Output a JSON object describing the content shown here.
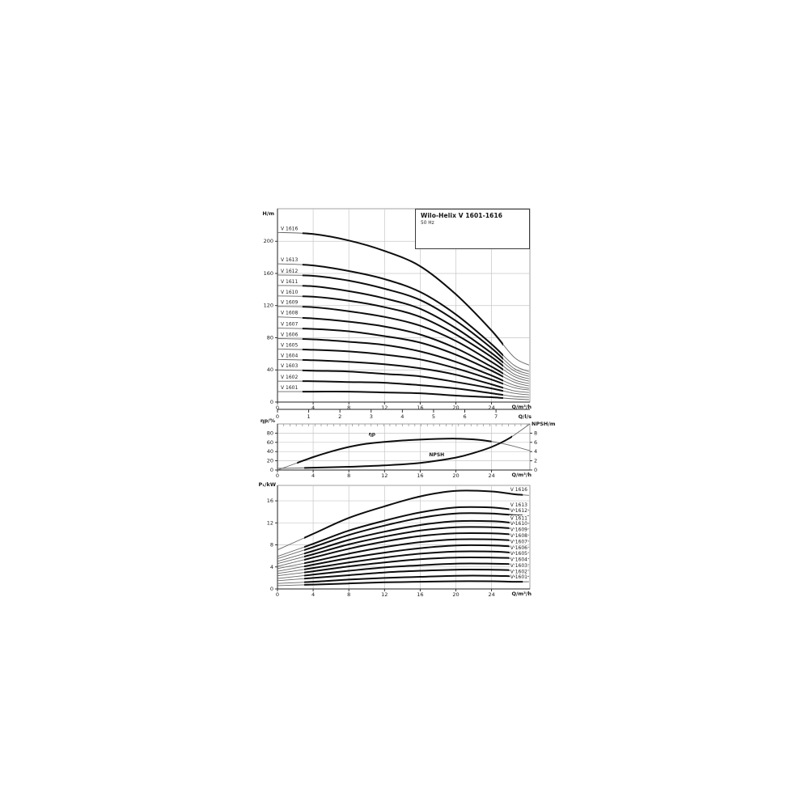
{
  "title_box": {
    "title": "Wilo-Helix V 1601-1616",
    "subtitle": "50 Hz"
  },
  "colors": {
    "background": "#ffffff",
    "curve": "#0d0d0d",
    "curve_thin": "#666666",
    "grid": "#c6c6c6",
    "frame": "#8a8a8a",
    "axis": "#222222",
    "text": "#1a1a1a"
  },
  "chart_data": [
    {
      "id": "head-flow",
      "type": "line",
      "ylabel": "H/m",
      "xlabel": "Q/m³/h",
      "x2label": "Q/l/s",
      "xlim": [
        0,
        28.3
      ],
      "ylim": [
        0,
        240.5
      ],
      "xticks": [
        0,
        4,
        8,
        12,
        16,
        20,
        24
      ],
      "yticks": [
        0,
        40,
        80,
        120,
        160,
        200
      ],
      "x2ticks": [
        0,
        1,
        2,
        3,
        4,
        5,
        6,
        7
      ],
      "x2_unit_m3h": 3.5,
      "grid": true,
      "label_side": "start",
      "x": [
        0,
        4,
        8,
        12,
        16,
        20,
        24,
        26.5,
        28.2
      ],
      "series": [
        {
          "name": "V 1616",
          "values": [
            211,
            209,
            201,
            188,
            169,
            134,
            89,
            56,
            46
          ]
        },
        {
          "name": "V 1613",
          "values": [
            172,
            170,
            163,
            153,
            137,
            109,
            72,
            46,
            38
          ]
        },
        {
          "name": "V 1612",
          "values": [
            158,
            157,
            151,
            141,
            127,
            101,
            67,
            42,
            35
          ]
        },
        {
          "name": "V 1611",
          "values": [
            145,
            144,
            138,
            129,
            116,
            92,
            61,
            39,
            32
          ]
        },
        {
          "name": "V 1610",
          "values": [
            132,
            131,
            126,
            118,
            106,
            84,
            56,
            35,
            29
          ]
        },
        {
          "name": "V 1609",
          "values": [
            119,
            118,
            113,
            106,
            95,
            76,
            50,
            32,
            26
          ]
        },
        {
          "name": "V 1608",
          "values": [
            106,
            104,
            100,
            94,
            84,
            67,
            44,
            28,
            23
          ]
        },
        {
          "name": "V 1607",
          "values": [
            92,
            91,
            88,
            82,
            74,
            59,
            39,
            25,
            20
          ]
        },
        {
          "name": "V 1606",
          "values": [
            79,
            78,
            75,
            71,
            63,
            50,
            33,
            21,
            17
          ]
        },
        {
          "name": "V 1605",
          "values": [
            66,
            65,
            63,
            59,
            53,
            42,
            28,
            18,
            15
          ]
        },
        {
          "name": "V 1604",
          "values": [
            53,
            52,
            50,
            47,
            42,
            34,
            22,
            14,
            12
          ]
        },
        {
          "name": "V 1603",
          "values": [
            40,
            39,
            38,
            35,
            32,
            25,
            17,
            11,
            9
          ]
        },
        {
          "name": "V 1602",
          "values": [
            26,
            26,
            25,
            24,
            21,
            17,
            11,
            7,
            6
          ]
        },
        {
          "name": "V 1601",
          "values": [
            13,
            13,
            13,
            12,
            11,
            8,
            6,
            4,
            3
          ]
        }
      ]
    },
    {
      "id": "efficiency-npsh",
      "type": "line",
      "ylabel": "ηp/%",
      "y2label": "NPSH/m",
      "xlabel": "Q/m³/h",
      "xlim": [
        0,
        28.3
      ],
      "ylim": [
        0,
        100
      ],
      "y2lim": [
        0,
        10
      ],
      "xticks": [
        0,
        4,
        8,
        12,
        16,
        20,
        24
      ],
      "yticks": [
        0,
        20,
        40,
        60,
        80
      ],
      "y2ticks": [
        0,
        2,
        4,
        6,
        8
      ],
      "grid": true,
      "series": [
        {
          "name": "ηp",
          "axis": "left",
          "x": [
            0,
            2,
            4,
            6,
            8,
            10,
            12,
            14,
            16,
            18,
            20,
            22,
            24,
            26,
            28.3
          ],
          "values": [
            0,
            14,
            28,
            40,
            50,
            57,
            61,
            64,
            66,
            67.5,
            68,
            66.5,
            62,
            54,
            42
          ]
        },
        {
          "name": "NPSH",
          "axis": "right",
          "x": [
            0,
            4,
            8,
            12,
            16,
            20,
            22,
            24,
            26,
            28.3
          ],
          "values": [
            0.35,
            0.5,
            0.7,
            1.0,
            1.55,
            2.7,
            3.7,
            5.0,
            6.9,
            10
          ]
        }
      ],
      "annotations": [
        {
          "text": "ηp",
          "x": 10.2,
          "y": 75
        },
        {
          "text": "NPSH",
          "x": 17,
          "y": 30
        }
      ]
    },
    {
      "id": "power-flow",
      "type": "line",
      "ylabel": "P₁/kW",
      "xlabel": "Q/m³/h",
      "xlim": [
        0,
        28.3
      ],
      "ylim": [
        0,
        18.8
      ],
      "xticks": [
        0,
        4,
        8,
        12,
        16,
        20,
        24
      ],
      "yticks": [
        0,
        4,
        8,
        12,
        16
      ],
      "grid": true,
      "label_side": "end",
      "x": [
        0,
        4,
        8,
        12,
        16,
        20,
        24,
        26.5,
        28.2
      ],
      "series": [
        {
          "name": "V 1616",
          "values": [
            7.1,
            10.0,
            12.9,
            15.0,
            16.8,
            17.8,
            17.7,
            17.2,
            17.0
          ]
        },
        {
          "name": "V 1613",
          "values": [
            5.9,
            8.2,
            10.6,
            12.4,
            13.9,
            14.8,
            14.8,
            14.4,
            14.3
          ]
        },
        {
          "name": "V 1612",
          "values": [
            5.5,
            7.6,
            9.8,
            11.5,
            12.9,
            13.7,
            13.7,
            13.4,
            13.3
          ]
        },
        {
          "name": "V 1611",
          "values": [
            5.0,
            6.9,
            8.9,
            10.4,
            11.6,
            12.3,
            12.3,
            12.0,
            11.9
          ]
        },
        {
          "name": "V 1610",
          "values": [
            4.6,
            6.3,
            8.1,
            9.5,
            10.6,
            11.2,
            11.2,
            11.0,
            10.9
          ]
        },
        {
          "name": "V 1609",
          "values": [
            4.1,
            5.7,
            7.3,
            8.6,
            9.6,
            10.1,
            10.1,
            9.9,
            9.8
          ]
        },
        {
          "name": "V 1608",
          "values": [
            3.7,
            5.0,
            6.4,
            7.6,
            8.5,
            9.0,
            9.0,
            8.8,
            8.7
          ]
        },
        {
          "name": "V 1607",
          "values": [
            3.2,
            4.4,
            5.6,
            6.6,
            7.4,
            7.9,
            7.9,
            7.7,
            7.6
          ]
        },
        {
          "name": "V 1606",
          "values": [
            2.8,
            3.8,
            4.8,
            5.7,
            6.4,
            6.8,
            6.8,
            6.6,
            6.6
          ]
        },
        {
          "name": "V 1605",
          "values": [
            2.4,
            3.2,
            4.1,
            4.8,
            5.4,
            5.7,
            5.7,
            5.6,
            5.5
          ]
        },
        {
          "name": "V 1604",
          "values": [
            1.9,
            2.6,
            3.3,
            3.9,
            4.3,
            4.6,
            4.6,
            4.5,
            4.4
          ]
        },
        {
          "name": "V 1603",
          "values": [
            1.5,
            2.0,
            2.5,
            3.0,
            3.3,
            3.5,
            3.5,
            3.4,
            3.4
          ]
        },
        {
          "name": "V 1602",
          "values": [
            1.0,
            1.3,
            1.7,
            2.0,
            2.2,
            2.4,
            2.4,
            2.3,
            2.3
          ]
        },
        {
          "name": "V 1601",
          "values": [
            0.6,
            0.8,
            1.0,
            1.2,
            1.3,
            1.4,
            1.4,
            1.3,
            1.3
          ]
        }
      ]
    }
  ]
}
